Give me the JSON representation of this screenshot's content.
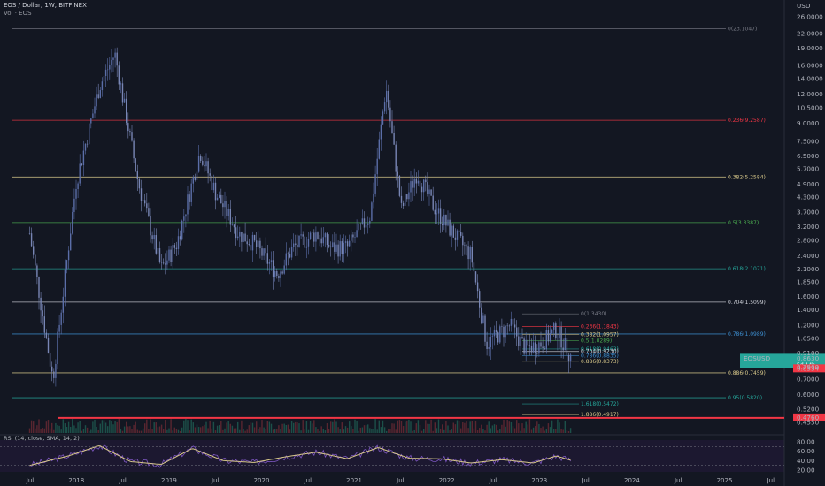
{
  "header": {
    "symbol_line": "EOS / Dollar, 1W, BITFINEX",
    "volume_line": "Vol · EOS"
  },
  "currency_label": "USD",
  "rsi_label": "RSI (14, close, SMA, 14, 2)",
  "colors": {
    "background": "#131722",
    "candle_up": "#4a5fa8",
    "candle_down": "#6b7fb8",
    "rsi_line": "#7e57c2",
    "rsi_sma": "#d8c88a",
    "support_line": "#f23645",
    "last_price_badge": "#26a69a"
  },
  "chart_data": {
    "type": "candlestick",
    "y_scale": "log",
    "y_axis_ticks": [
      "26.0000",
      "22.0000",
      "19.0000",
      "16.0000",
      "14.0000",
      "12.0000",
      "10.5000",
      "9.0000",
      "7.5000",
      "6.5000",
      "5.7000",
      "4.9000",
      "4.3000",
      "3.7000",
      "3.2000",
      "2.8000",
      "2.4000",
      "2.1000",
      "1.8500",
      "1.6000",
      "1.4000",
      "1.2000",
      "1.0500",
      "0.9100",
      "0.7900",
      "0.7000",
      "0.6000",
      "0.5200",
      "0.4550"
    ],
    "x_axis_ticks": [
      "Jul",
      "2018",
      "Jul",
      "2019",
      "Jul",
      "2020",
      "Jul",
      "2021",
      "Jul",
      "2022",
      "Jul",
      "2023",
      "Jul",
      "2024",
      "Jul",
      "2025",
      "Jul"
    ],
    "price_badges": [
      {
        "symbol": "EOSUSD",
        "value": "0.8630",
        "sub": "5d 14h"
      },
      {
        "value": "0.8334"
      },
      {
        "value": "0.4760"
      }
    ],
    "fib_major": [
      {
        "label": "0(23.1047)",
        "value": 23.1047
      },
      {
        "label": "0.236(9.2587)",
        "value": 9.2587
      },
      {
        "label": "0.382(5.2584)",
        "value": 5.2584
      },
      {
        "label": "0.5(3.3387)",
        "value": 3.3387
      },
      {
        "label": "0.618(2.1071)",
        "value": 2.1071
      },
      {
        "label": "0.704(1.5099)",
        "value": 1.5099
      },
      {
        "label": "0.786(1.0989)",
        "value": 1.0989
      },
      {
        "label": "0.886(0.7459)",
        "value": 0.7459
      },
      {
        "label": "0.95(0.5820)",
        "value": 0.582
      }
    ],
    "fib_minor": [
      {
        "label": "0(1.3430)",
        "value": 1.343
      },
      {
        "label": "0.236(1.1843)",
        "value": 1.1843
      },
      {
        "label": "0.382(1.0957)",
        "value": 1.0957
      },
      {
        "label": "0.5(1.0289)",
        "value": 1.0289
      },
      {
        "label": "0.618(0.9463)",
        "value": 0.9463
      },
      {
        "label": "0.704(0.9230)",
        "value": 0.923
      },
      {
        "label": "0.786(0.8835)",
        "value": 0.8835
      },
      {
        "label": "0.886(0.8373)",
        "value": 0.8373
      },
      {
        "label": "1.618(0.5472)",
        "value": 0.5472
      },
      {
        "label": "1.886(0.4917)",
        "value": 0.4917
      }
    ],
    "support_level": 0.476,
    "price_path": {
      "x": [
        "2017-07",
        "2017-10",
        "2018-01",
        "2018-04",
        "2018-06",
        "2018-09",
        "2018-12",
        "2019-02",
        "2019-05",
        "2019-07",
        "2019-10",
        "2019-12",
        "2020-03",
        "2020-05",
        "2020-08",
        "2020-10",
        "2020-12",
        "2021-03",
        "2021-05",
        "2021-07",
        "2021-09",
        "2021-11",
        "2022-01",
        "2022-04",
        "2022-06",
        "2022-09",
        "2022-11",
        "2023-01",
        "2023-03",
        "2023-05"
      ],
      "y": [
        3.0,
        0.7,
        5.0,
        13.0,
        18.0,
        5.0,
        2.1,
        2.7,
        6.8,
        4.5,
        3.0,
        2.7,
        2.0,
        2.6,
        3.0,
        2.6,
        2.6,
        3.6,
        13.0,
        3.8,
        5.5,
        4.0,
        3.2,
        2.4,
        1.0,
        1.2,
        0.95,
        1.0,
        1.15,
        0.86
      ]
    },
    "rsi_axis_ticks": [
      "80.00",
      "60.00",
      "40.00",
      "20.00"
    ],
    "rsi_path": {
      "x": [
        "2017-07",
        "2017-12",
        "2018-04",
        "2018-08",
        "2018-12",
        "2019-04",
        "2019-08",
        "2019-12",
        "2020-04",
        "2020-08",
        "2020-12",
        "2021-04",
        "2021-08",
        "2021-12",
        "2022-04",
        "2022-08",
        "2022-12",
        "2023-03",
        "2023-05"
      ],
      "y": [
        30,
        50,
        72,
        38,
        32,
        66,
        40,
        36,
        48,
        58,
        44,
        68,
        45,
        44,
        35,
        42,
        35,
        50,
        40
      ]
    }
  }
}
